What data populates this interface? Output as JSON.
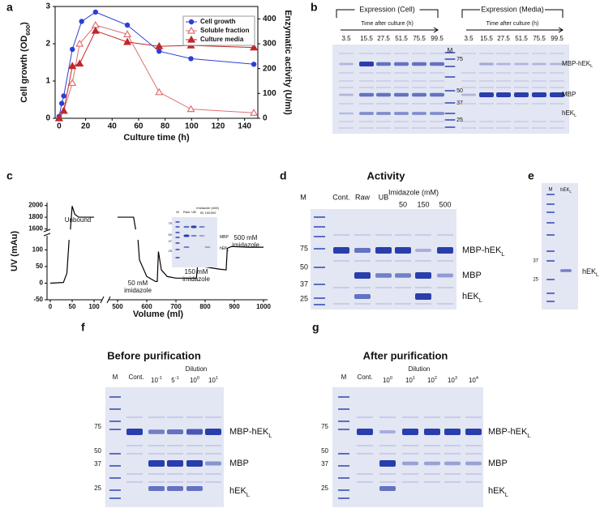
{
  "panel_labels": [
    "a",
    "b",
    "c",
    "d",
    "e",
    "f",
    "g"
  ],
  "chart_data": [
    {
      "type": "line",
      "x_label": "Culture time (h)",
      "y_label": {
        "text": "Cell growth (OD",
        "sub": "600",
        "tail": ")"
      },
      "y2_label": "Enzymatic activity (U/ml)",
      "xlim": [
        -3,
        150
      ],
      "xticks": [
        0,
        20,
        40,
        60,
        80,
        100,
        120,
        140
      ],
      "ylim": [
        0,
        3
      ],
      "yticks": [
        0,
        1,
        2,
        3
      ],
      "y2lim": [
        0,
        450
      ],
      "y2ticks": [
        0,
        100,
        200,
        300,
        400
      ],
      "y_color": "#1f2fd0",
      "y2_color": "#c00000",
      "legend": "top-right",
      "series": [
        {
          "name": "Cell growth",
          "color": "#2b3fd6",
          "marker": "circle",
          "x": [
            0,
            2,
            3.5,
            10,
            17,
            27.5,
            51.5,
            75.5,
            99.5,
            147
          ],
          "values": [
            0.05,
            0.4,
            0.6,
            1.85,
            2.6,
            2.85,
            2.5,
            1.8,
            1.6,
            1.45
          ]
        },
        {
          "name": "Soluble fraction",
          "color": "#e07070",
          "marker": "triangle-open",
          "axis": "y2",
          "x": [
            0,
            3.5,
            10,
            15.5,
            27.5,
            51.5,
            75.5,
            99.5,
            147
          ],
          "values": [
            0,
            30,
            142,
            300,
            375,
            338,
            105,
            37,
            22
          ]
        },
        {
          "name": "Culture media",
          "color": "#c0282a",
          "marker": "triangle",
          "axis": "y2",
          "x": [
            0,
            3.5,
            10,
            15.5,
            27.5,
            51.5,
            75.5,
            99.5,
            147
          ],
          "values": [
            0,
            30,
            210,
            220,
            352,
            307,
            290,
            293,
            285
          ]
        }
      ]
    },
    {
      "type": "broken-line",
      "x_label": "Volume (ml)",
      "y_label": "UV (mAu)",
      "xlim_segments": [
        [
          0,
          100
        ],
        [
          500,
          1000
        ]
      ],
      "ylim_segments": [
        [
          -50,
          140
        ],
        [
          1580,
          2050
        ]
      ],
      "xticks": [
        0,
        50,
        100,
        500,
        600,
        700,
        800,
        900,
        1000
      ],
      "yticks": [
        -50,
        0,
        50,
        100,
        1600,
        1800,
        2000
      ],
      "color": "#000000",
      "x": [
        0,
        30,
        38,
        43,
        45,
        46,
        50,
        56,
        65,
        100,
        300,
        500,
        555,
        562,
        565,
        570,
        575,
        600,
        630,
        636,
        640,
        650,
        670,
        700,
        770,
        775,
        790,
        850,
        872,
        876,
        890,
        950,
        1000
      ],
      "values": [
        0,
        2,
        30,
        130,
        null,
        1590,
        1990,
        1850,
        1800,
        1800,
        null,
        1800,
        1800,
        1590,
        null,
        130,
        70,
        20,
        5,
        5,
        95,
        40,
        20,
        15,
        15,
        60,
        50,
        42,
        40,
        105,
        110,
        108,
        108
      ],
      "annotations": [
        [
          "Unbound"
        ],
        [
          "50 mM",
          "imidazole"
        ],
        [
          "150 mM",
          "imidazole"
        ],
        [
          "500 mM",
          "imidazole"
        ]
      ]
    }
  ],
  "gel_b": {
    "groups": [
      {
        "title": "Expression (Cell)",
        "subtitle": "Time after culture (h)",
        "lanes": [
          "3.5",
          "15.5",
          "27.5",
          "51.5",
          "75.5",
          "99.5"
        ]
      },
      {
        "title": "Expression (Media)",
        "subtitle": "Time after culture (h)",
        "lanes": [
          "3.5",
          "15.5",
          "27.5",
          "51.5",
          "75.5",
          "99.5"
        ]
      }
    ],
    "marker_lane": "M",
    "markers": [
      "75",
      "50",
      "37",
      "25"
    ],
    "bands": [
      {
        "text": "MBP-hEK",
        "sub": "L"
      },
      {
        "text": "MBP"
      },
      {
        "text": "hEK",
        "sub": "L"
      }
    ]
  },
  "gel_c_inset": {
    "lanes": [
      "M",
      "Raw",
      "UB"
    ],
    "group_title": "Imidazole (mM)",
    "group_lanes": [
      "50",
      "150",
      "500"
    ],
    "markers": [
      "75",
      "50",
      "37",
      "25"
    ],
    "bands": [
      {
        "text": "MBP"
      },
      {
        "text": "hEK",
        "sub": "L"
      }
    ]
  },
  "gel_d": {
    "title": "Activity",
    "lanes": [
      "M",
      "Cont.",
      "Raw",
      "UB"
    ],
    "group_title": "Imidazole (mM)",
    "group_lanes": [
      "50",
      "150",
      "500"
    ],
    "markers": [
      "75",
      "50",
      "37",
      "25"
    ],
    "bands": [
      {
        "text": "MBP-hEK",
        "sub": "L"
      },
      {
        "text": "MBP"
      },
      {
        "text": "hEK",
        "sub": "L"
      }
    ]
  },
  "gel_e": {
    "lanes": [
      "M",
      {
        "text": "hEK",
        "sub": "L"
      }
    ],
    "markers": [
      "37",
      "25"
    ],
    "bands": [
      {
        "text": "hEK",
        "sub": "L"
      }
    ]
  },
  "gel_f": {
    "title": "Before purification",
    "lanes": [
      "M",
      "Cont."
    ],
    "group_title": "Dilution",
    "group_lanes": [
      {
        "text": "10",
        "sup": "-1"
      },
      {
        "text": "5",
        "sup": "-1"
      },
      {
        "text": "10",
        "sup": "0"
      },
      {
        "text": "10",
        "sup": "1"
      }
    ],
    "markers": [
      "75",
      "50",
      "37",
      "25"
    ],
    "bands": [
      {
        "text": "MBP-hEK",
        "sub": "L"
      },
      {
        "text": "MBP"
      },
      {
        "text": "hEK",
        "sub": "L"
      }
    ]
  },
  "gel_g": {
    "title": "After purification",
    "lanes": [
      "M",
      "Cont."
    ],
    "group_title": "Dilution",
    "group_lanes": [
      {
        "text": "10",
        "sup": "0"
      },
      {
        "text": "10",
        "sup": "1"
      },
      {
        "text": "10",
        "sup": "2"
      },
      {
        "text": "10",
        "sup": "3"
      },
      {
        "text": "10",
        "sup": "4"
      }
    ],
    "markers": [
      "75",
      "50",
      "37",
      "25"
    ],
    "bands": [
      {
        "text": "MBP-hEK",
        "sub": "L"
      },
      {
        "text": "MBP"
      },
      {
        "text": "hEK",
        "sub": "L"
      }
    ]
  }
}
